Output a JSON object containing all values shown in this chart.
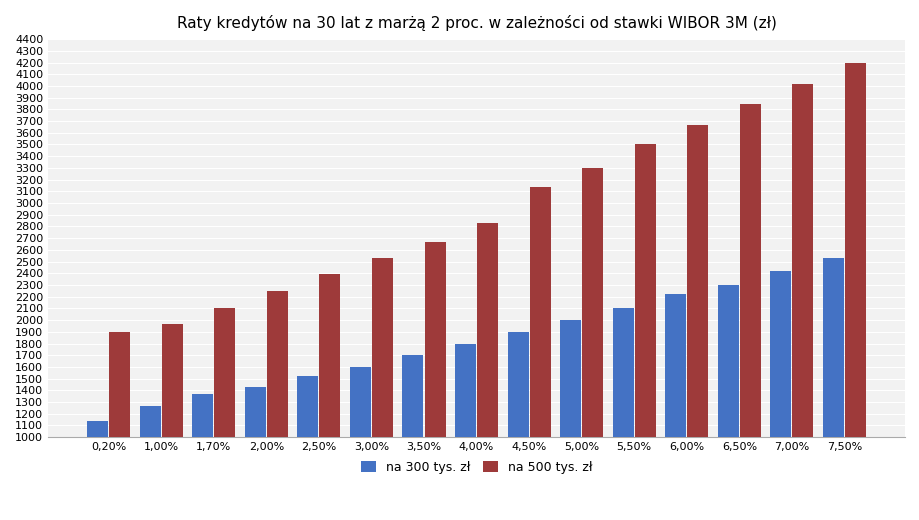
{
  "title": "Raty kredytów na 30 lat z marżą 2 proc. w zależności od stawki WIBOR 3M (zł)",
  "categories": [
    "0,20%",
    "1,00%",
    "1,70%",
    "2,00%",
    "2,50%",
    "3,00%",
    "3,50%",
    "4,00%",
    "4,50%",
    "5,00%",
    "5,50%",
    "6,00%",
    "6,50%",
    "7,00%",
    "7,50%"
  ],
  "values_300": [
    1140,
    1270,
    1370,
    1430,
    1520,
    1600,
    1700,
    1800,
    1900,
    2000,
    2100,
    2220,
    2300,
    2420,
    2530
  ],
  "values_500": [
    1900,
    1970,
    2100,
    2250,
    2390,
    2530,
    2670,
    2830,
    3140,
    3300,
    3500,
    3670,
    3850,
    4020,
    4200
  ],
  "color_300": "#4472c4",
  "color_500": "#9e3a3a",
  "legend_300": "na 300 tys. zł",
  "legend_500": "na 500 tys. zł",
  "ylim_min": 1000,
  "ylim_max": 4400,
  "ytick_step": 100,
  "plot_bg_color": "#f2f2f2",
  "fig_bg_color": "#ffffff",
  "grid_color": "#ffffff",
  "title_fontsize": 11,
  "tick_fontsize": 8,
  "bar_width": 0.4,
  "bar_gap": 0.02
}
